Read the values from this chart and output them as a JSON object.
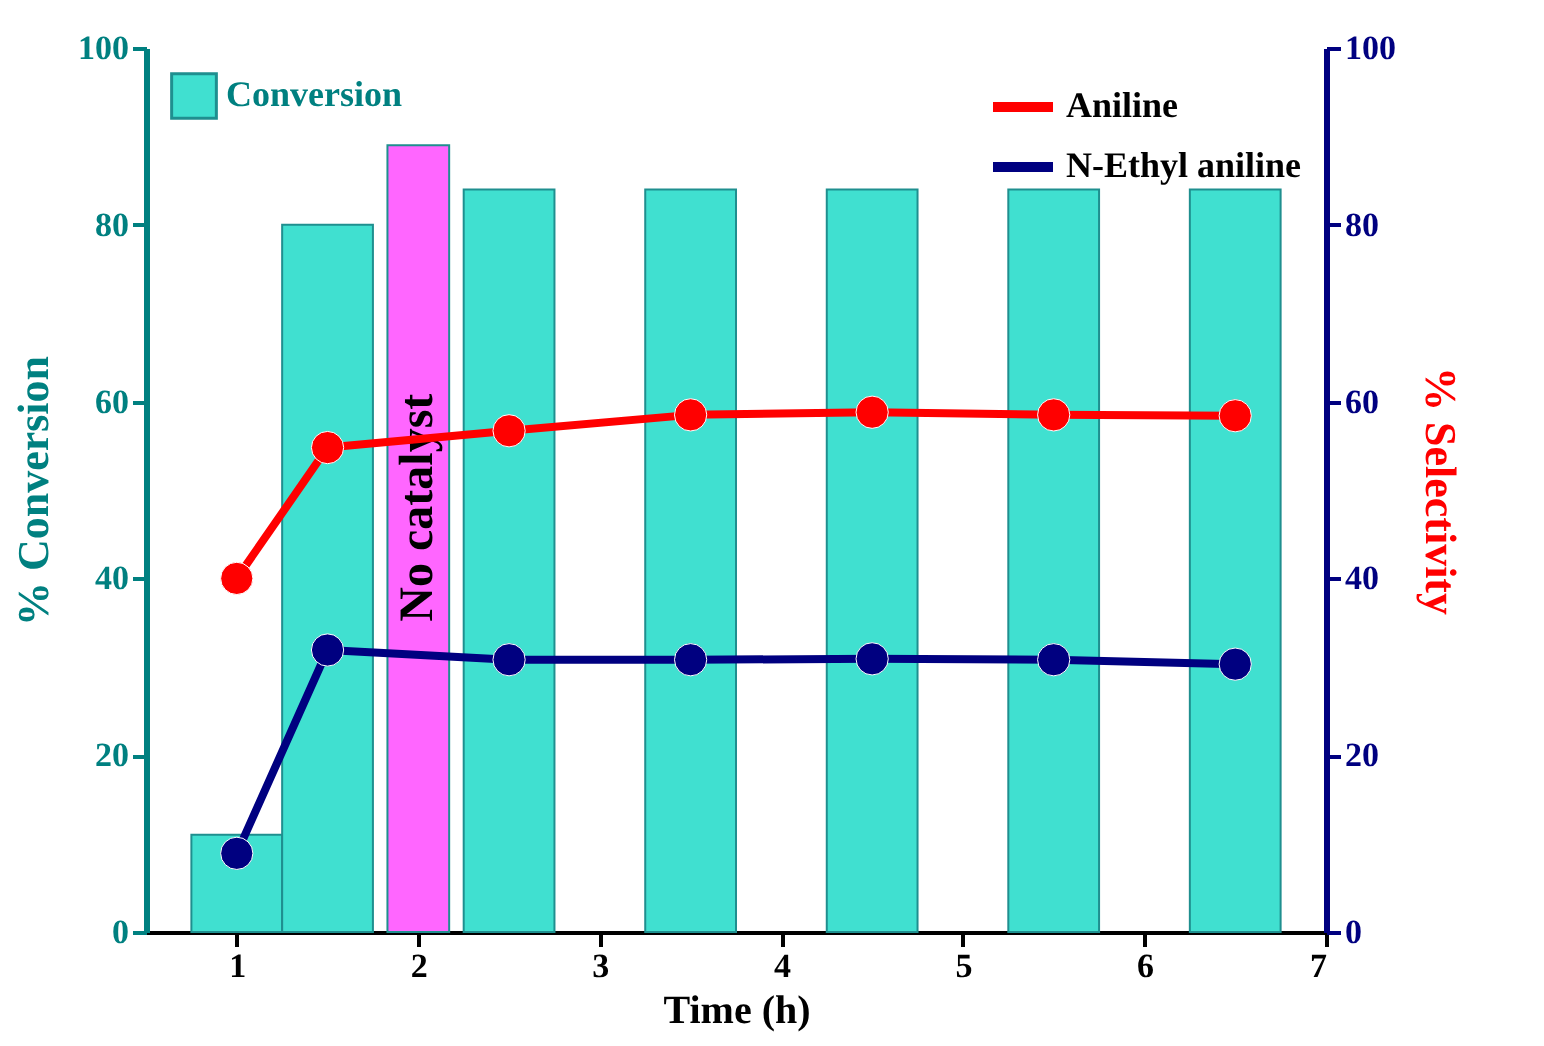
{
  "chart_data": {
    "type": "bar",
    "xlabel": "Time (h)",
    "ylabel": "% Conversion",
    "y2label": "% Selectivity",
    "xlim": [
      0.5,
      7
    ],
    "xticks": [
      1,
      2,
      3,
      4,
      5,
      6,
      7
    ],
    "ylim": [
      0,
      100
    ],
    "yticks": [
      0,
      20,
      40,
      60,
      80,
      100
    ],
    "y2lim": [
      0,
      100
    ],
    "y2ticks": [
      0,
      20,
      40,
      60,
      80,
      100
    ],
    "legend": "top",
    "marker": "circle",
    "grid": false,
    "annotations": [
      "No catalyst"
    ],
    "series": [
      {
        "name": "Conversion",
        "color": "#40e0d0",
        "x": [
          1,
          1.5,
          2.5,
          3.5,
          4.5,
          5.5,
          6.5
        ],
        "values": [
          11,
          80,
          84,
          84,
          84,
          84,
          84
        ]
      },
      {
        "color": "#ff66ff",
        "x": [
          2
        ],
        "values": [
          89
        ]
      },
      {
        "name": "Aniline",
        "type": "line",
        "axis": "y2",
        "color": "#ff0000",
        "x": [
          1,
          1.5,
          2.5,
          3.5,
          4.5,
          5.5,
          6.5
        ],
        "values": [
          40,
          54.8,
          56.7,
          58.5,
          58.8,
          58.5,
          58.4
        ]
      },
      {
        "name": "N-Ethyl aniline",
        "type": "line",
        "axis": "y2",
        "color": "#000080",
        "x": [
          1,
          1.5,
          2.5,
          3.5,
          4.5,
          5.5,
          6.5
        ],
        "values": [
          8.9,
          31.9,
          30.8,
          30.8,
          30.9,
          30.8,
          30.3
        ]
      }
    ]
  }
}
